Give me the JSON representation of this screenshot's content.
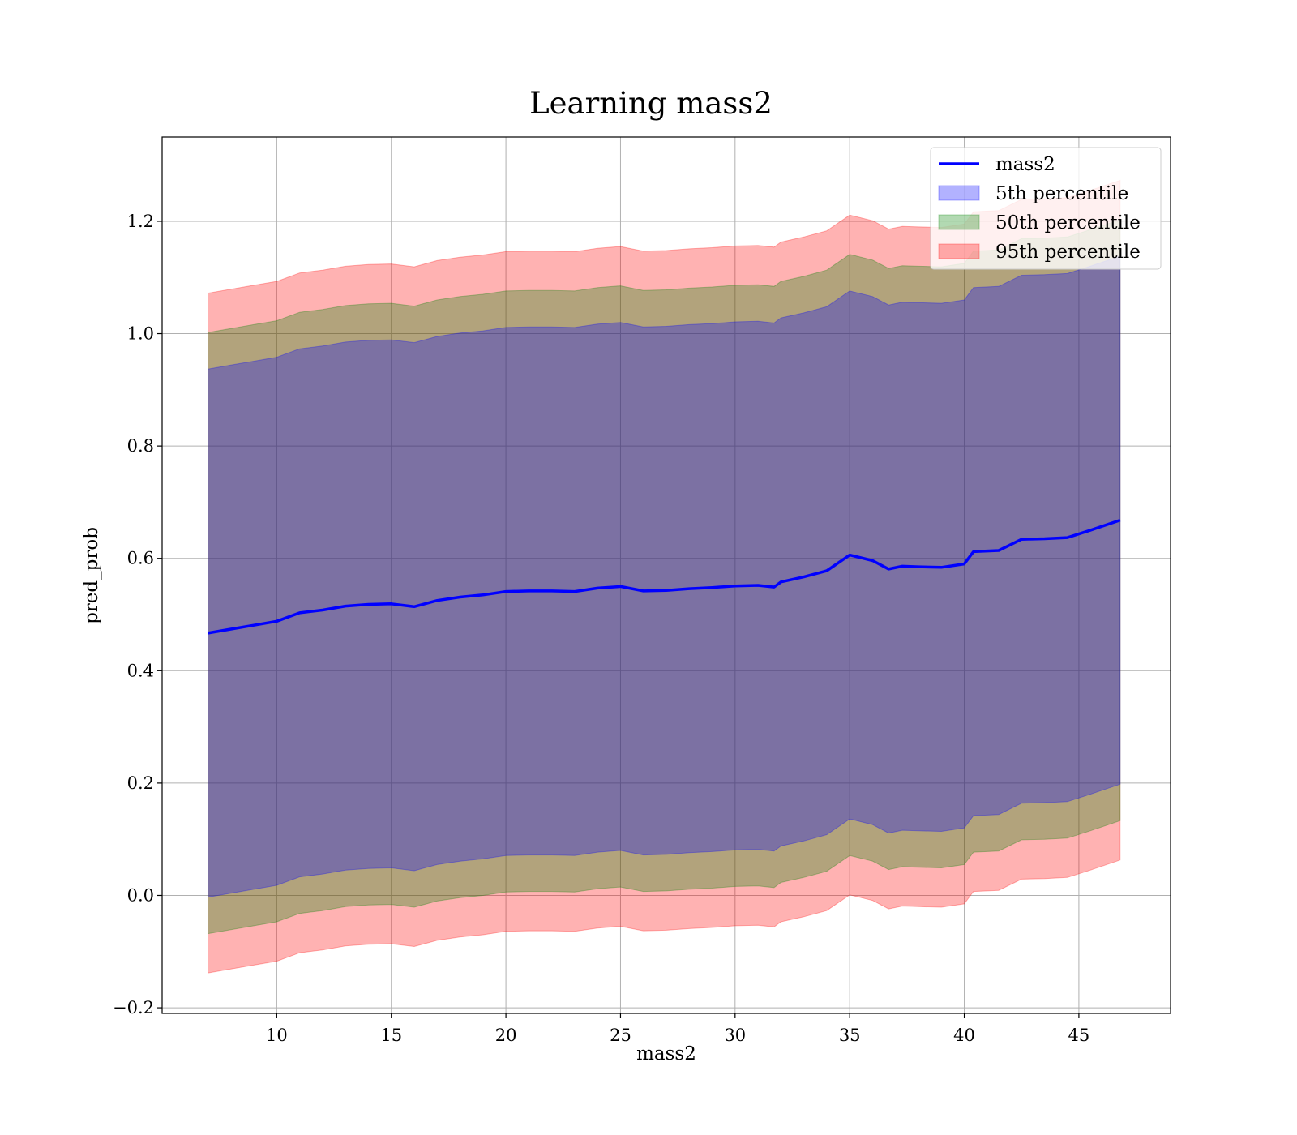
{
  "chart_data": {
    "type": "area",
    "title": "Learning mass2",
    "xlabel": "mass2",
    "ylabel": "pred_prob",
    "xlim": [
      5,
      49
    ],
    "ylim": [
      -0.21,
      1.35
    ],
    "xticks": [
      10,
      15,
      20,
      25,
      30,
      35,
      40,
      45
    ],
    "yticks": [
      -0.2,
      0.0,
      0.2,
      0.4,
      0.6,
      0.8,
      1.0,
      1.2
    ],
    "xtick_labels": [
      "10",
      "15",
      "20",
      "25",
      "30",
      "35",
      "40",
      "45"
    ],
    "ytick_labels": [
      "−0.2",
      "0.0",
      "0.2",
      "0.4",
      "0.6",
      "0.8",
      "1.0",
      "1.2"
    ],
    "grid": true,
    "legend_position": "top-right",
    "x": [
      7.0,
      8.0,
      9.0,
      10.0,
      11.0,
      12.0,
      13.0,
      14.0,
      15.0,
      16.0,
      17.0,
      18.0,
      19.0,
      20.0,
      21.0,
      22.0,
      23.0,
      24.0,
      25.0,
      26.0,
      27.0,
      28.0,
      29.0,
      30.0,
      31.0,
      31.7,
      32.0,
      33.0,
      34.0,
      35.0,
      36.0,
      36.7,
      37.3,
      38.0,
      39.0,
      40.0,
      40.4,
      41.5,
      42.5,
      43.5,
      44.5,
      45.5,
      46.8
    ],
    "series": [
      {
        "name": "mass2",
        "type": "line",
        "color": "#0000ff",
        "values": [
          0.467,
          0.474,
          0.481,
          0.488,
          0.503,
          0.508,
          0.515,
          0.518,
          0.519,
          0.514,
          0.525,
          0.531,
          0.535,
          0.541,
          0.542,
          0.542,
          0.541,
          0.547,
          0.55,
          0.542,
          0.543,
          0.546,
          0.548,
          0.551,
          0.552,
          0.549,
          0.558,
          0.567,
          0.578,
          0.606,
          0.596,
          0.581,
          0.586,
          0.585,
          0.584,
          0.59,
          0.612,
          0.614,
          0.634,
          0.635,
          0.637,
          0.65,
          0.668
        ]
      },
      {
        "name": "5th percentile",
        "type": "band",
        "color": "#0000ff",
        "offset": 0.47
      },
      {
        "name": "50th percentile",
        "type": "band",
        "color": "#008000",
        "offset": 0.535
      },
      {
        "name": "95th percentile",
        "type": "band",
        "color": "#ff0000",
        "offset": 0.605
      }
    ]
  }
}
